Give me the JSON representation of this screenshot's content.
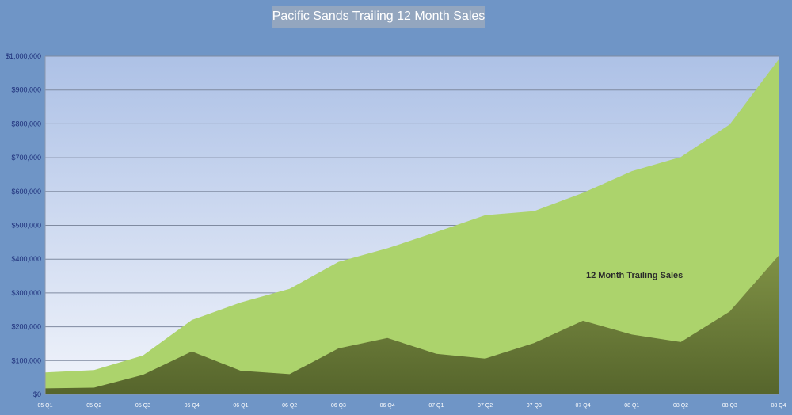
{
  "chart_data": {
    "type": "area",
    "title": "Pacific Sands Trailing 12 Month Sales",
    "categories": [
      "05 Q1",
      "05 Q2",
      "05 Q3",
      "05 Q4",
      "06 Q1",
      "06 Q2",
      "06 Q3",
      "06 Q4",
      "07 Q1",
      "07 Q2",
      "07 Q3",
      "07 Q4",
      "08 Q1",
      "08 Q2",
      "08 Q3",
      "08 Q4"
    ],
    "ylim": [
      0,
      1000000
    ],
    "yticks": [
      0,
      100000,
      200000,
      300000,
      400000,
      500000,
      600000,
      700000,
      800000,
      900000,
      1000000
    ],
    "ytick_labels": [
      "$0",
      "$100,000",
      "$200,000",
      "$300,000",
      "$400,000",
      "$500,000",
      "$600,000",
      "$700,000",
      "$800,000",
      "$900,000",
      "$1,000,000"
    ],
    "grid": true,
    "series": [
      {
        "name": "12 Month Trailing Sales",
        "color": "#acd36c",
        "values": [
          65000,
          72000,
          115000,
          220000,
          272000,
          312000,
          392000,
          432000,
          480000,
          530000,
          542000,
          596000,
          660000,
          702000,
          798000,
          990000
        ]
      },
      {
        "color": "#6b7c3a",
        "values": [
          18000,
          20000,
          58000,
          127000,
          70000,
          60000,
          136000,
          167000,
          120000,
          106000,
          152000,
          218000,
          177000,
          155000,
          245000,
          410000
        ]
      }
    ],
    "colors": {
      "background": "#6f95c6",
      "plot_top": "#adc1e6",
      "plot_bottom": "#f1f4fb",
      "gridline": "#7f8aa0",
      "ytick_text": "#1e2f7a",
      "xtick_text": "#ffffff"
    }
  }
}
